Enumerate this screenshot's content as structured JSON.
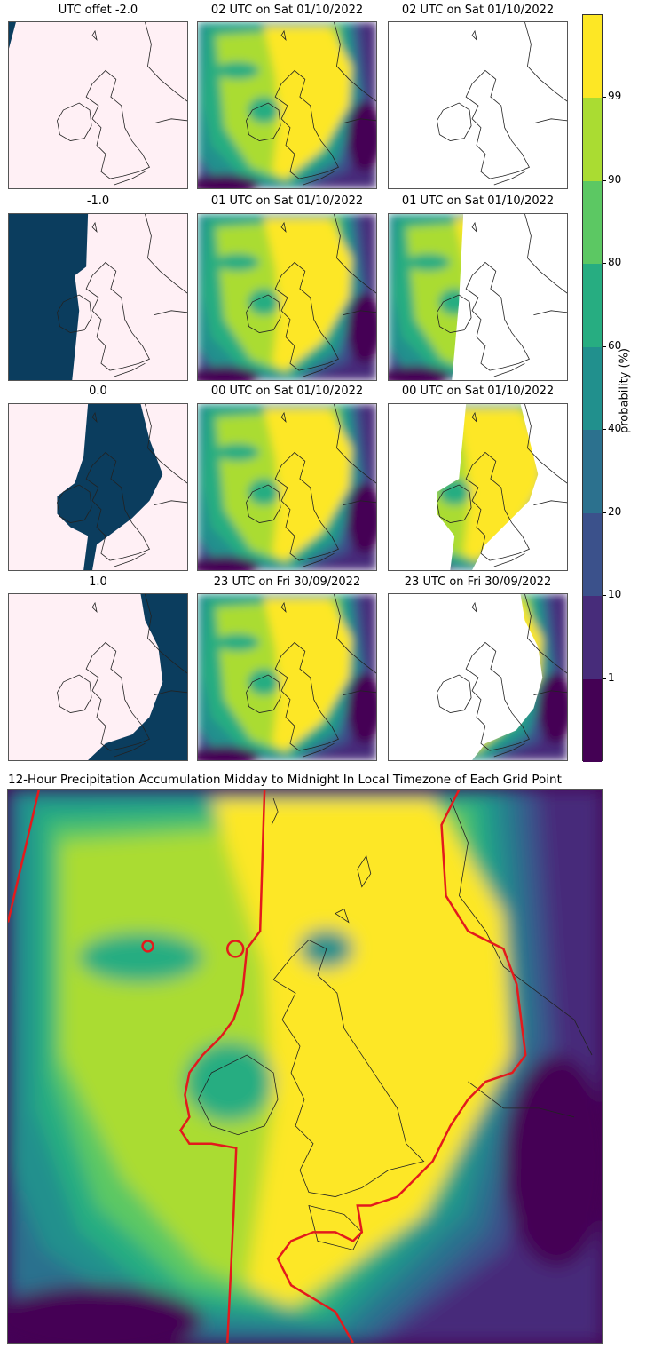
{
  "panel_titles": [
    [
      "UTC offet -2.0",
      "02 UTC on Sat 01/10/2022",
      "02 UTC on Sat 01/10/2022"
    ],
    [
      "-1.0",
      "01 UTC on Sat 01/10/2022",
      "01 UTC on Sat 01/10/2022"
    ],
    [
      "0.0",
      "00 UTC on Sat 01/10/2022",
      "00 UTC on Sat 01/10/2022"
    ],
    [
      "1.0",
      "23 UTC on Fri 30/09/2022",
      "23 UTC on Fri 30/09/2022"
    ]
  ],
  "main_title": "12-Hour Precipitation Accumulation Midday to Midnight In Local Timezone of Each Grid Point",
  "colorbar": {
    "label": "probability (%)",
    "ticks": [
      "1",
      "10",
      "20",
      "40",
      "60",
      "80",
      "90",
      "99"
    ],
    "colors": [
      "#440154",
      "#472c7a",
      "#3b518b",
      "#2c718e",
      "#21908d",
      "#27ad81",
      "#5cc863",
      "#aadc32",
      "#fde725"
    ]
  },
  "colors": {
    "pink": "#fff0f5",
    "navy": "#0b3d5e",
    "boundary": "#e31a1c",
    "white": "#ffffff"
  }
}
